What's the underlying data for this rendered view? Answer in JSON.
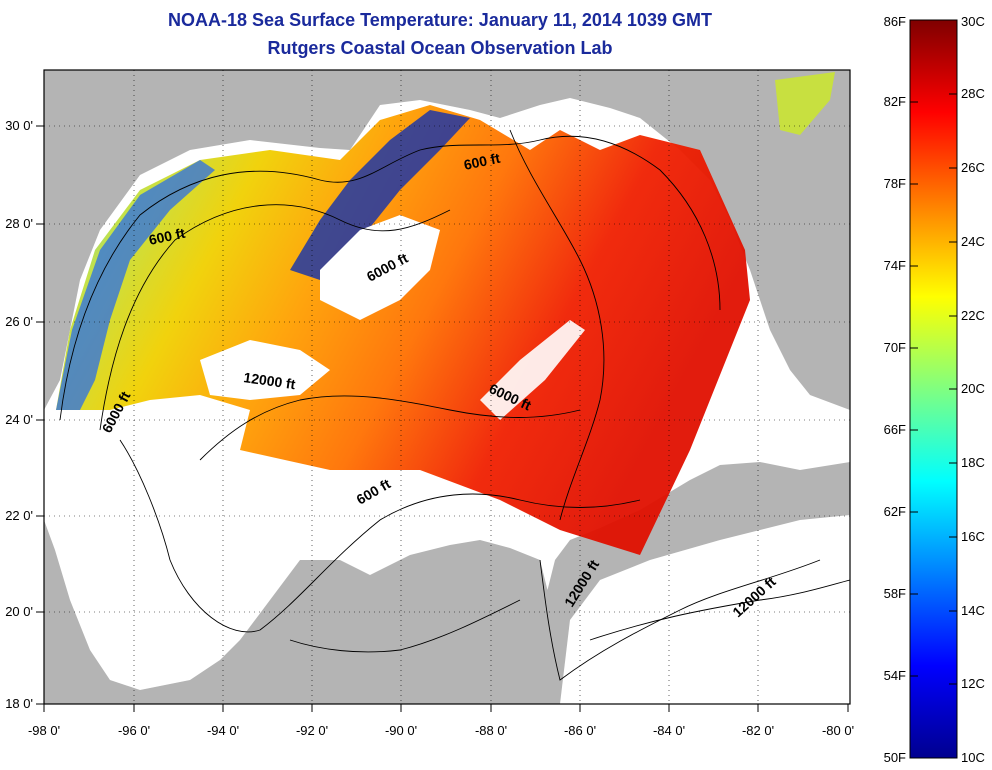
{
  "header": {
    "title": "NOAA-18 Sea Surface Temperature:  January 11, 2014 1039 GMT",
    "subtitle": "Rutgers Coastal Ocean Observation Lab"
  },
  "map": {
    "x_ticks": [
      "-98 0'",
      "-96 0'",
      "-94 0'",
      "-92 0'",
      "-90 0'",
      "-88 0'",
      "-86 0'",
      "-84 0'",
      "-82 0'",
      "-80 0'"
    ],
    "y_ticks": [
      "30 0'",
      "28 0'",
      "26 0'",
      "24 0'",
      "22 0'",
      "20 0'",
      "18 0'"
    ],
    "contour_labels": [
      "600 ft",
      "600 ft",
      "6000 ft",
      "12000 ft",
      "6000 ft",
      "6000 ft",
      "600 ft",
      "12000 ft",
      "12000 ft"
    ],
    "land_color": "#b4b4b4",
    "water_color": "#ffffff"
  },
  "colorbar": {
    "f_labels": [
      "86F",
      "82F",
      "78F",
      "74F",
      "70F",
      "66F",
      "62F",
      "58F",
      "54F",
      "50F"
    ],
    "c_labels": [
      "30C",
      "28C",
      "26C",
      "24C",
      "22C",
      "20C",
      "18C",
      "16C",
      "14C",
      "12C",
      "10C"
    ],
    "colormap": [
      "#7f0000",
      "#ff0000",
      "#ff8000",
      "#ffff00",
      "#80ff80",
      "#00ffff",
      "#0080ff",
      "#0000ff",
      "#00008f"
    ]
  }
}
